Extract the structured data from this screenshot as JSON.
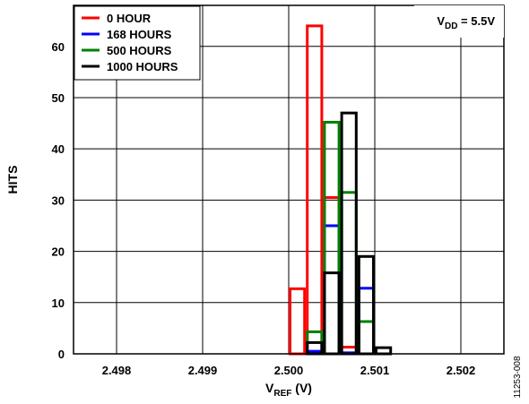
{
  "chart_data": {
    "type": "bar",
    "title": "",
    "xlabel": {
      "main": "V",
      "sub": "REF",
      "suffix": " (V)"
    },
    "ylabel": "HITS",
    "annotation": {
      "main": "V",
      "sub": "DD",
      "suffix": " = 5.5V"
    },
    "figure_id": "11253-008",
    "xlim": [
      2.4975,
      2.5025
    ],
    "ylim": [
      0,
      68
    ],
    "xticks": [
      "2.498",
      "2.499",
      "2.500",
      "2.501",
      "2.502"
    ],
    "xtick_values": [
      2.498,
      2.499,
      2.5,
      2.501,
      2.502
    ],
    "yticks": [
      0,
      10,
      20,
      30,
      40,
      50,
      60
    ],
    "grid": true,
    "legend_position": "top-left",
    "bin_width": 0.0002,
    "series": [
      {
        "name": "0 HOUR",
        "color": "#ff0000",
        "bins": [
          {
            "x": 2.5,
            "v": 12.7
          },
          {
            "x": 2.5002,
            "v": 64
          },
          {
            "x": 2.5004,
            "v": 30.5
          },
          {
            "x": 2.5006,
            "v": 1.3
          }
        ]
      },
      {
        "name": "168 HOURS",
        "color": "#0000ff",
        "bins": [
          {
            "x": 2.5002,
            "v": 0.5
          },
          {
            "x": 2.5004,
            "v": 25
          },
          {
            "x": 2.5006,
            "v": 0.2
          },
          {
            "x": 2.5008,
            "v": 12.8
          }
        ]
      },
      {
        "name": "500 HOURS",
        "color": "#008000",
        "bins": [
          {
            "x": 2.5002,
            "v": 4.3
          },
          {
            "x": 2.5004,
            "v": 45.2
          },
          {
            "x": 2.5006,
            "v": 31.5
          },
          {
            "x": 2.5008,
            "v": 6.3
          }
        ]
      },
      {
        "name": "1000 HOURS",
        "color": "#000000",
        "bins": [
          {
            "x": 2.5002,
            "v": 2.2
          },
          {
            "x": 2.5004,
            "v": 15.8
          },
          {
            "x": 2.5006,
            "v": 47
          },
          {
            "x": 2.5008,
            "v": 19
          },
          {
            "x": 2.501,
            "v": 1.2
          }
        ]
      }
    ]
  }
}
